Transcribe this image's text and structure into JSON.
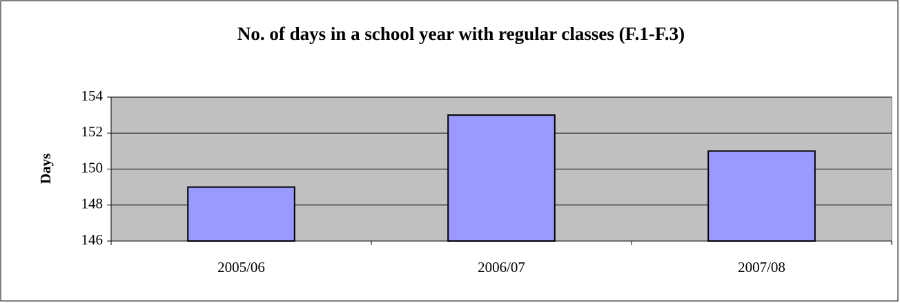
{
  "chart_data": {
    "type": "bar",
    "title": "No. of days in a school year with regular classes (F.1-F.3)",
    "y_label": "Days",
    "categories": [
      "2005/06",
      "2006/07",
      "2007/08"
    ],
    "values": [
      149,
      153,
      151
    ],
    "color": "#9999ff",
    "ylim": [
      146,
      154
    ],
    "yticks": [
      146,
      148,
      150,
      152,
      154
    ],
    "grid": true
  }
}
